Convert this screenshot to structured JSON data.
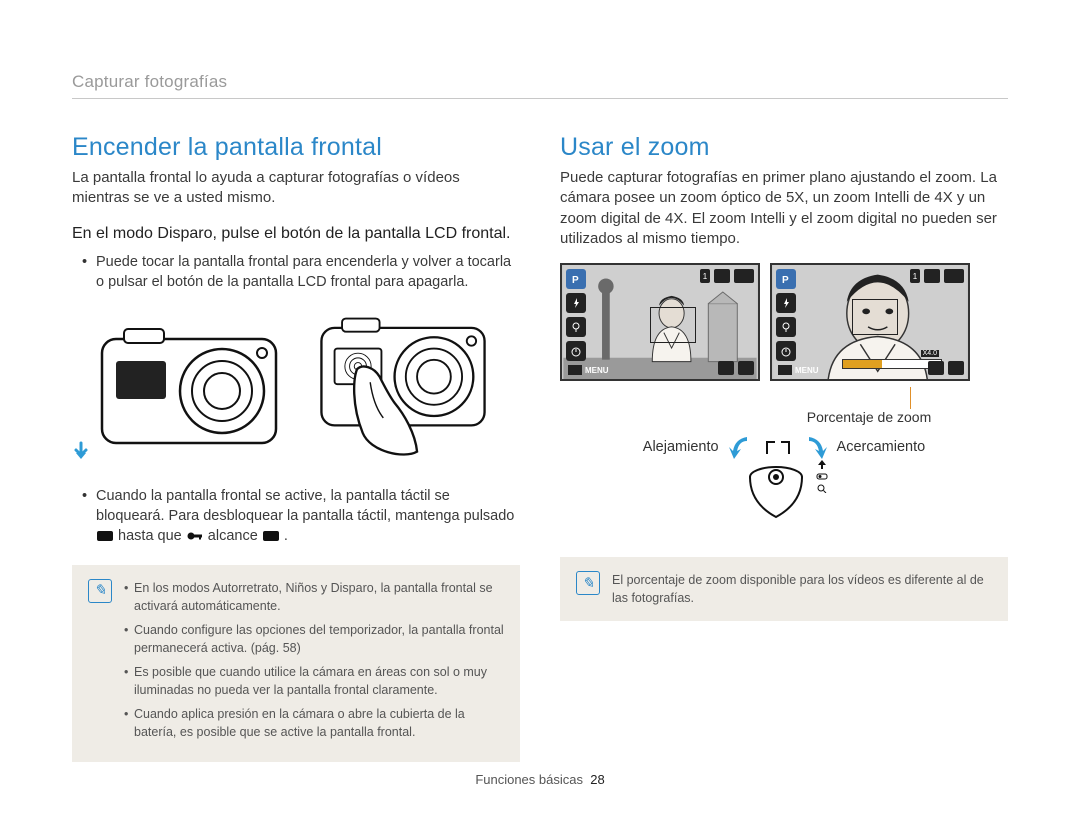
{
  "breadcrumb": "Capturar fotografías",
  "left": {
    "heading": "Encender la pantalla frontal",
    "intro": "La pantalla frontal lo ayuda a capturar fotografías o vídeos mientras se ve a usted mismo.",
    "step": "En el modo Disparo, pulse el botón de la pantalla LCD frontal.",
    "bullet1": "Puede tocar la pantalla frontal para encenderla y volver a tocarla o pulsar el botón de la pantalla LCD frontal para apagarla.",
    "bullet2_pre": "Cuando la pantalla frontal se active, la pantalla táctil se bloqueará. Para desbloquear la pantalla táctil, mantenga pulsado ",
    "bullet2_mid": " hasta que ",
    "bullet2_mid2": " alcance ",
    "bullet2_post": ".",
    "notes": [
      "En los modos Autorretrato, Niños y Disparo, la pantalla frontal se activará automáticamente.",
      "Cuando configure las opciones del temporizador, la pantalla frontal permanecerá activa. (pág. 58)",
      "Es posible que cuando utilice la cámara en áreas con sol o muy iluminadas no pueda ver la pantalla frontal claramente.",
      "Cuando aplica presión en la cámara o abre la cubierta de la batería, es posible que se active la pantalla frontal."
    ]
  },
  "right": {
    "heading": "Usar el zoom",
    "intro": "Puede capturar fotografías en primer plano ajustando el zoom. La cámara posee un zoom óptico de 5X, un zoom Intelli de 4X y un zoom digital de 4X. El zoom Intelli y el zoom digital no pueden ser utilizados al mismo tiempo.",
    "ratio_label": "Porcentaje de zoom",
    "zoom_out": "Alejamiento",
    "zoom_in": "Acercamiento",
    "menu_label": "MENU",
    "screen_counter": "1",
    "note": "El porcentaje de zoom disponible para los vídeos es diferente al de las fotografías.",
    "zoom_bar_fill_pct": 40,
    "zoom_bar_label": "X4.0"
  },
  "footer": {
    "section": "Funciones básicas",
    "page": "28"
  },
  "colors": {
    "heading": "#2b87c8",
    "notebox_bg": "#efece6",
    "accent_orange": "#e0902a",
    "arrow_blue": "#2e9bd6"
  }
}
